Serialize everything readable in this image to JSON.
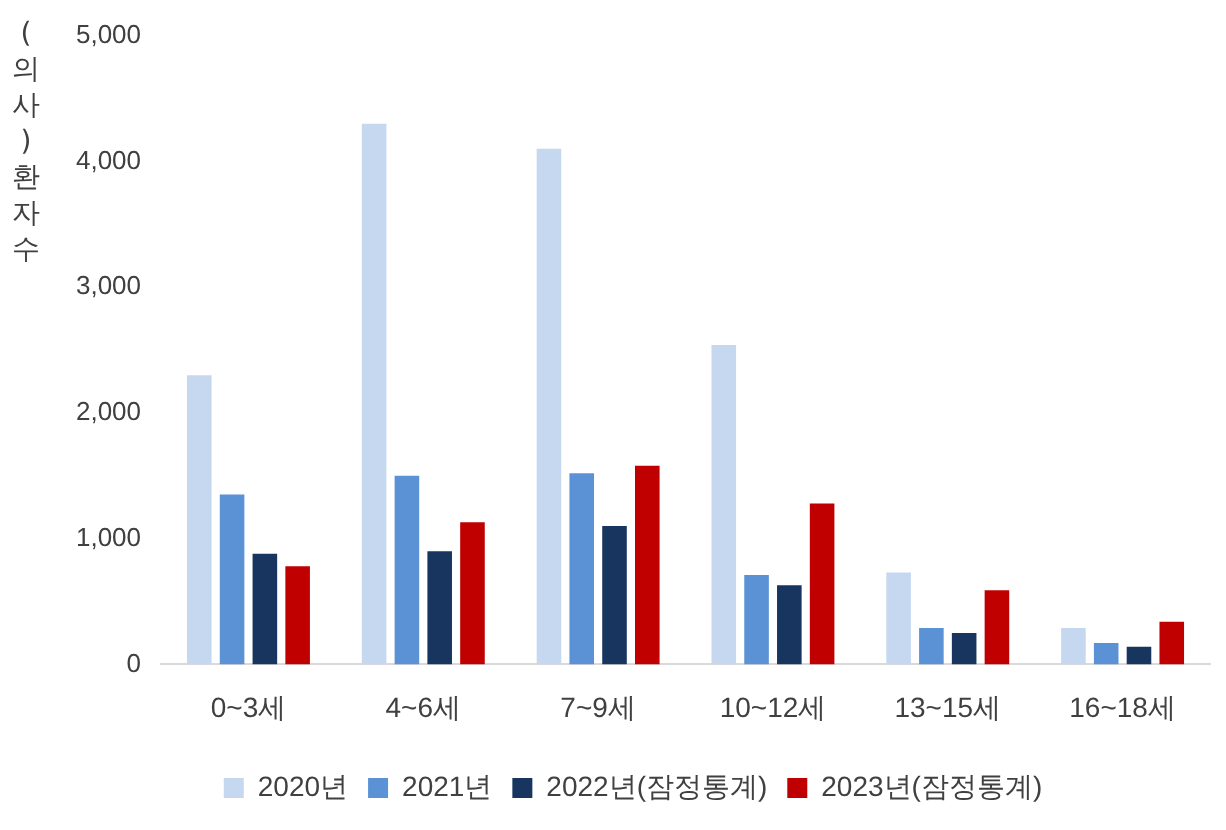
{
  "chart_data": {
    "type": "bar",
    "ylabel": "(의사)환자 수",
    "categories": [
      "0~3세",
      "4~6세",
      "7~9세",
      "10~12세",
      "13~15세",
      "16~18세"
    ],
    "series": [
      {
        "name": "2020년",
        "color": "#c5d8f0",
        "values": [
          2300,
          4300,
          4100,
          2540,
          730,
          290
        ]
      },
      {
        "name": "2021년",
        "color": "#5b92d6",
        "values": [
          1350,
          1500,
          1520,
          710,
          290,
          170
        ]
      },
      {
        "name": "2022년(잠정통계)",
        "color": "#17355e",
        "values": [
          880,
          900,
          1100,
          630,
          250,
          140
        ]
      },
      {
        "name": "2023년(잠정통계)",
        "color": "#c00000",
        "values": [
          780,
          1130,
          1580,
          1280,
          590,
          340
        ]
      }
    ],
    "ylim": [
      0,
      5000
    ],
    "yticks": [
      {
        "value": 0,
        "label": "0"
      },
      {
        "value": 1000,
        "label": "1,000"
      },
      {
        "value": 2000,
        "label": "2,000"
      },
      {
        "value": 3000,
        "label": "3,000"
      },
      {
        "value": 4000,
        "label": "4,000"
      },
      {
        "value": 5000,
        "label": "5,000"
      }
    ],
    "grid": false,
    "legend": "bottom"
  }
}
